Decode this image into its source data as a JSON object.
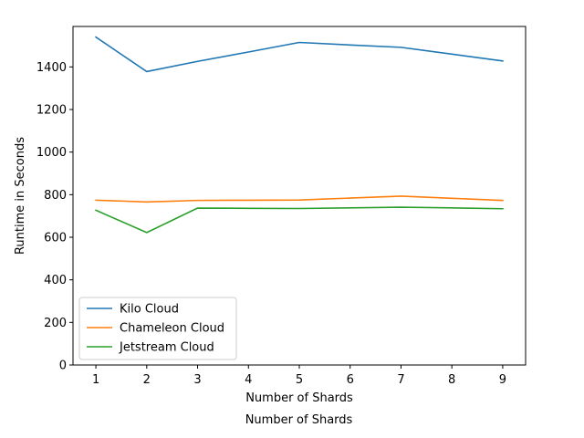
{
  "chart_data": {
    "type": "line",
    "title": "",
    "xlabel": "Number of Shards",
    "ylabel": "Runtime in Seconds",
    "x": [
      1,
      2,
      3,
      4,
      5,
      6,
      7,
      8,
      9
    ],
    "xticks": [
      "1",
      "2",
      "3",
      "4",
      "5",
      "6",
      "7",
      "8",
      "9"
    ],
    "xlim": [
      0.55,
      9.45
    ],
    "ylim": [
      0,
      1590
    ],
    "yticks": [
      0,
      200,
      400,
      600,
      800,
      1000,
      1200,
      1400
    ],
    "grid": false,
    "legend_position": "lower-left",
    "series": [
      {
        "name": "Kilo Cloud",
        "color": "#1f77b4",
        "values": [
          1540,
          1378,
          1426,
          1470,
          1515,
          1503,
          1492,
          1460,
          1428
        ]
      },
      {
        "name": "Chameleon Cloud",
        "color": "#ff7f0e",
        "values": [
          774,
          766,
          773,
          774,
          775,
          784,
          793,
          783,
          773
        ]
      },
      {
        "name": "Jetstream Cloud",
        "color": "#2ca02c",
        "values": [
          727,
          622,
          737,
          736,
          735,
          738,
          741,
          738,
          734
        ]
      }
    ]
  },
  "caption": "Number of Shards"
}
